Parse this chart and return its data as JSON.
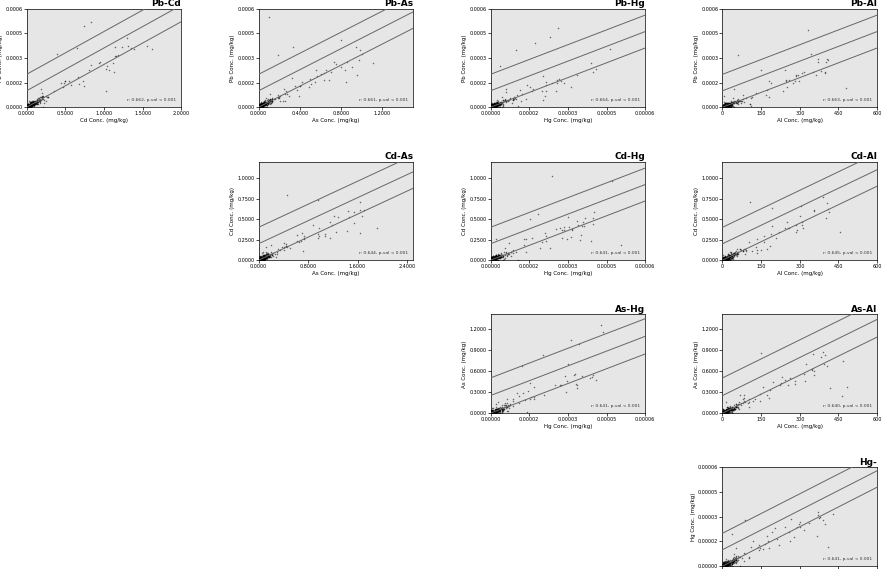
{
  "plots": [
    {
      "title": "Pb-Cd",
      "xlabel": "Cd Conc. (mg/kg)",
      "ylabel": "Pb Conc. (mg/kg)",
      "row": 0,
      "col": 0,
      "xmax": 2.0,
      "ymax": 0.0006,
      "slope": 0.00026,
      "intercept": 0.0,
      "offsets": [
        0.0,
        0.0001,
        0.0002
      ],
      "annotation": "r: 0.662, p-val < 0.001"
    },
    {
      "title": "Pb-As",
      "xlabel": "As Conc. (mg/kg)",
      "ylabel": "Pb Conc. (mg/kg)",
      "row": 0,
      "col": 1,
      "xmax": 1.5,
      "ymax": 0.0006,
      "slope": 0.00032,
      "intercept": 0.0,
      "offsets": [
        0.0,
        0.0001,
        0.0002
      ],
      "annotation": "r: 0.661, p-val < 0.001"
    },
    {
      "title": "Pb-Hg",
      "xlabel": "Hg Conc. (mg/kg)",
      "ylabel": "Pb Conc. (mg/kg)",
      "row": 0,
      "col": 2,
      "xmax": 6e-05,
      "ymax": 0.0006,
      "slope": 6.0,
      "intercept": 0.0,
      "offsets": [
        0.0,
        0.0001,
        0.0002
      ],
      "annotation": "r: 0.664, p-val < 0.001"
    },
    {
      "title": "Pb-Al",
      "xlabel": "Al Conc. (mg/kg)",
      "ylabel": "Pb Conc. (mg/kg)",
      "row": 0,
      "col": 3,
      "xmax": 600,
      "ymax": 0.0006,
      "slope": 6e-07,
      "intercept": 0.0,
      "offsets": [
        0.0,
        0.0001,
        0.0002
      ],
      "annotation": "r: 0.663, p-val < 0.001"
    },
    {
      "title": "Cd-As",
      "xlabel": "As Conc. (mg/kg)",
      "ylabel": "Cd Conc. (mg/kg)",
      "row": 1,
      "col": 1,
      "xmax": 2.5,
      "ymax": 1.2,
      "slope": 0.35,
      "intercept": 0.0,
      "offsets": [
        0.0,
        0.2,
        0.4
      ],
      "annotation": "r: 0.644, p-val < 0.001"
    },
    {
      "title": "Cd-Hg",
      "xlabel": "Hg Conc. (mg/kg)",
      "ylabel": "Cd Conc. (mg/kg)",
      "row": 1,
      "col": 2,
      "xmax": 6e-05,
      "ymax": 1.2,
      "slope": 12000,
      "intercept": 0.0,
      "offsets": [
        0.0,
        0.2,
        0.4
      ],
      "annotation": "r: 0.641, p-val < 0.001"
    },
    {
      "title": "Cd-Al",
      "xlabel": "Al Conc. (mg/kg)",
      "ylabel": "Cd Conc. (mg/kg)",
      "row": 1,
      "col": 3,
      "xmax": 600,
      "ymax": 1.2,
      "slope": 0.0015,
      "intercept": 0.0,
      "offsets": [
        0.0,
        0.2,
        0.4
      ],
      "annotation": "r: 0.645, p-val < 0.001"
    },
    {
      "title": "As-Hg",
      "xlabel": "Hg Conc. (mg/kg)",
      "ylabel": "As Conc. (mg/kg)",
      "row": 2,
      "col": 2,
      "xmax": 6e-05,
      "ymax": 1.4,
      "slope": 14000,
      "intercept": 0.0,
      "offsets": [
        0.0,
        0.25,
        0.5
      ],
      "annotation": "r: 0.641, p-val < 0.001"
    },
    {
      "title": "As-Al",
      "xlabel": "Al Conc. (mg/kg)",
      "ylabel": "As Conc. (mg/kg)",
      "row": 2,
      "col": 3,
      "xmax": 600,
      "ymax": 1.4,
      "slope": 0.0018,
      "intercept": 0.0,
      "offsets": [
        0.0,
        0.25,
        0.5
      ],
      "annotation": "r: 0.640, p-val < 0.001"
    },
    {
      "title": "Hg-",
      "xlabel": "Al Conc. (mg/kg)",
      "ylabel": "Hg Conc. (mg/kg)",
      "row": 3,
      "col": 3,
      "xmax": 600,
      "ymax": 6e-05,
      "slope": 8e-08,
      "intercept": 0.0,
      "offsets": [
        0.0,
        1e-05,
        2e-05
      ],
      "annotation": "r: 0.641, p-val < 0.001"
    }
  ],
  "bg_color": "#e6e6e6",
  "point_color": "#000000",
  "line_color": "#666666",
  "n_rows": 4,
  "n_cols": 4,
  "figsize": [
    8.86,
    5.69
  ],
  "dpi": 100
}
